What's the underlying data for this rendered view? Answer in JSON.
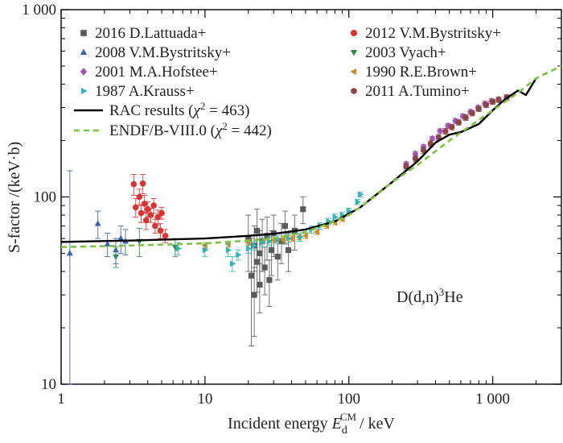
{
  "chart_data": {
    "type": "scatter",
    "title": "",
    "xlabel": "Incident energy E_d^CM / keV",
    "xlabel_parts": {
      "prefix": "Incident energy ",
      "var": "E",
      "sub": "d",
      "sup": "CM",
      "suffix": "/ keV"
    },
    "ylabel": "S-factor /(keV·b)",
    "x_scale": "log",
    "y_scale": "log",
    "xlim": [
      1,
      3000
    ],
    "ylim": [
      10,
      1000
    ],
    "x_ticks": [
      {
        "value": 1,
        "label": "1"
      },
      {
        "value": 10,
        "label": "10"
      },
      {
        "value": 100,
        "label": "100"
      },
      {
        "value": 1000,
        "label": "1 000"
      }
    ],
    "y_ticks": [
      {
        "value": 10,
        "label": "10"
      },
      {
        "value": 100,
        "label": "100"
      },
      {
        "value": 1000,
        "label": "1 000"
      }
    ],
    "grid": false,
    "legend_placement": "top",
    "annotation": {
      "text": "D(d,n)",
      "sup": "3",
      "tail": "He",
      "x": 500,
      "y": 33
    },
    "series": [
      {
        "name": "2016 D.Lattuada+",
        "marker": "square",
        "color": "#5a5a5a",
        "points": [
          [
            20,
            60,
            20
          ],
          [
            21,
            38,
            22
          ],
          [
            22,
            55,
            15
          ],
          [
            22,
            30,
            12
          ],
          [
            23,
            66,
            20
          ],
          [
            23,
            45,
            14
          ],
          [
            24,
            50,
            16
          ],
          [
            24,
            34,
            10
          ],
          [
            25,
            58,
            18
          ],
          [
            26,
            42,
            12
          ],
          [
            27,
            62,
            16
          ],
          [
            28,
            36,
            10
          ],
          [
            29,
            52,
            14
          ],
          [
            30,
            64,
            16
          ],
          [
            32,
            48,
            12
          ],
          [
            34,
            58,
            14
          ],
          [
            36,
            70,
            14
          ],
          [
            38,
            52,
            12
          ],
          [
            42,
            66,
            14
          ],
          [
            48,
            86,
            14
          ]
        ]
      },
      {
        "name": "2012 V.M.Bystritsky+",
        "marker": "circle",
        "color": "#e03030",
        "points": [
          [
            3.2,
            117,
            15
          ],
          [
            3.3,
            88,
            10
          ],
          [
            3.5,
            100,
            10
          ],
          [
            3.6,
            82,
            9
          ],
          [
            3.7,
            118,
            14
          ],
          [
            3.8,
            92,
            10
          ],
          [
            3.9,
            75,
            8
          ],
          [
            4.0,
            86,
            8
          ],
          [
            4.2,
            80,
            7
          ],
          [
            4.4,
            90,
            8
          ],
          [
            4.5,
            70,
            6
          ],
          [
            4.7,
            78,
            7
          ],
          [
            4.9,
            66,
            6
          ],
          [
            5.0,
            82,
            6
          ],
          [
            5.3,
            62,
            5
          ]
        ]
      },
      {
        "name": "2008 V.M.Bystritsky+",
        "marker": "triangle-up",
        "color": "#3a5fb8",
        "points": [
          [
            1.15,
            50,
            88
          ],
          [
            1.8,
            72,
            12
          ],
          [
            2.1,
            56,
            8
          ],
          [
            2.4,
            52,
            8
          ],
          [
            2.6,
            60,
            10
          ],
          [
            2.8,
            58,
            9
          ]
        ]
      },
      {
        "name": "2003 Vyach+",
        "marker": "triangle-down",
        "color": "#2e8b57",
        "points": [
          [
            2.4,
            48,
            6
          ],
          [
            3.5,
            58,
            10
          ],
          [
            6.2,
            54,
            6
          ]
        ]
      },
      {
        "name": "2001 M.A.Hofstee+",
        "marker": "diamond",
        "color": "#a055b5",
        "points": [
          [
            250,
            150,
            4
          ],
          [
            290,
            170,
            5
          ],
          [
            330,
            185,
            5
          ],
          [
            380,
            205,
            5
          ],
          [
            430,
            225,
            6
          ],
          [
            490,
            240,
            6
          ],
          [
            550,
            255,
            7
          ],
          [
            620,
            270,
            7
          ],
          [
            700,
            285,
            8
          ],
          [
            790,
            300,
            8
          ],
          [
            880,
            315,
            9
          ],
          [
            980,
            325,
            9
          ],
          [
            1100,
            332,
            10
          ],
          [
            1250,
            340,
            10
          ]
        ]
      },
      {
        "name": "1990 R.E.Brown+",
        "marker": "triangle-left",
        "color": "#d08a20",
        "points": [
          [
            10,
            55,
            2
          ],
          [
            14.5,
            56,
            2
          ],
          [
            20,
            57,
            2
          ],
          [
            25,
            58,
            2
          ],
          [
            30,
            59,
            2
          ],
          [
            35,
            59,
            2
          ],
          [
            40,
            60,
            2
          ],
          [
            45,
            61,
            2
          ],
          [
            50,
            62,
            2
          ],
          [
            60,
            65,
            2
          ],
          [
            70,
            70,
            2
          ],
          [
            80,
            73,
            2
          ],
          [
            90,
            76,
            2
          ]
        ]
      },
      {
        "name": "1987 A.Krauss+",
        "marker": "triangle-right",
        "color": "#2fb5b5",
        "points": [
          [
            6.5,
            53,
            4
          ],
          [
            10,
            52,
            4
          ],
          [
            14.5,
            52,
            4
          ],
          [
            15.5,
            44,
            4
          ],
          [
            17,
            49,
            3
          ],
          [
            20,
            53,
            3
          ],
          [
            22,
            55,
            3
          ],
          [
            25,
            57,
            3
          ],
          [
            28,
            58,
            3
          ],
          [
            32,
            59,
            3
          ],
          [
            38,
            60,
            3
          ],
          [
            46,
            61,
            3
          ],
          [
            55,
            67,
            3
          ],
          [
            63,
            70,
            3
          ],
          [
            72,
            74,
            3
          ],
          [
            80,
            78,
            3
          ],
          [
            90,
            80,
            3
          ],
          [
            100,
            84,
            3
          ],
          [
            115,
            94,
            3
          ],
          [
            120,
            103,
            3
          ]
        ]
      },
      {
        "name": "2011 A.Tumino+",
        "marker": "hexagon",
        "color": "#8b4545",
        "points": [
          [
            250,
            145,
            6
          ],
          [
            290,
            160,
            6
          ],
          [
            330,
            178,
            7
          ],
          [
            370,
            192,
            7
          ],
          [
            420,
            208,
            7
          ],
          [
            470,
            224,
            8
          ],
          [
            520,
            236,
            8
          ],
          [
            580,
            250,
            8
          ],
          [
            650,
            265,
            9
          ],
          [
            720,
            280,
            9
          ],
          [
            800,
            295,
            9
          ],
          [
            900,
            310,
            10
          ],
          [
            1000,
            322,
            10
          ],
          [
            1100,
            330,
            10
          ],
          [
            1250,
            340,
            11
          ]
        ]
      }
    ],
    "lines": [
      {
        "name": "RAC results",
        "chi_label": "(χ² = 463)",
        "chi_pre": "(",
        "chi_var": "χ",
        "chi_sup": "2",
        "chi_post": " = 463)",
        "style": "solid",
        "color": "#000000",
        "points": [
          [
            1,
            57.5
          ],
          [
            3,
            58.5
          ],
          [
            10,
            60
          ],
          [
            20,
            62
          ],
          [
            30,
            63.5
          ],
          [
            50,
            67
          ],
          [
            80,
            74
          ],
          [
            120,
            88
          ],
          [
            200,
            120
          ],
          [
            300,
            155
          ],
          [
            400,
            195
          ],
          [
            500,
            215
          ],
          [
            600,
            222
          ],
          [
            800,
            245
          ],
          [
            1000,
            290
          ],
          [
            1200,
            330
          ],
          [
            1500,
            370
          ],
          [
            1700,
            350
          ],
          [
            2000,
            430
          ]
        ]
      },
      {
        "name": "ENDF/B-VIII.0",
        "chi_label": "(χ² = 442)",
        "chi_pre": "(",
        "chi_var": "χ",
        "chi_sup": "2",
        "chi_post": " = 442)",
        "style": "dashed",
        "color": "#7fc241",
        "points": [
          [
            1,
            54
          ],
          [
            3,
            55
          ],
          [
            10,
            56.5
          ],
          [
            20,
            58.5
          ],
          [
            30,
            60
          ],
          [
            50,
            65
          ],
          [
            80,
            74
          ],
          [
            100,
            80
          ],
          [
            150,
            100
          ],
          [
            200,
            120
          ],
          [
            300,
            148
          ],
          [
            500,
            200
          ],
          [
            700,
            240
          ],
          [
            1000,
            290
          ],
          [
            1500,
            360
          ],
          [
            2000,
            430
          ],
          [
            3000,
            500
          ]
        ]
      }
    ]
  }
}
